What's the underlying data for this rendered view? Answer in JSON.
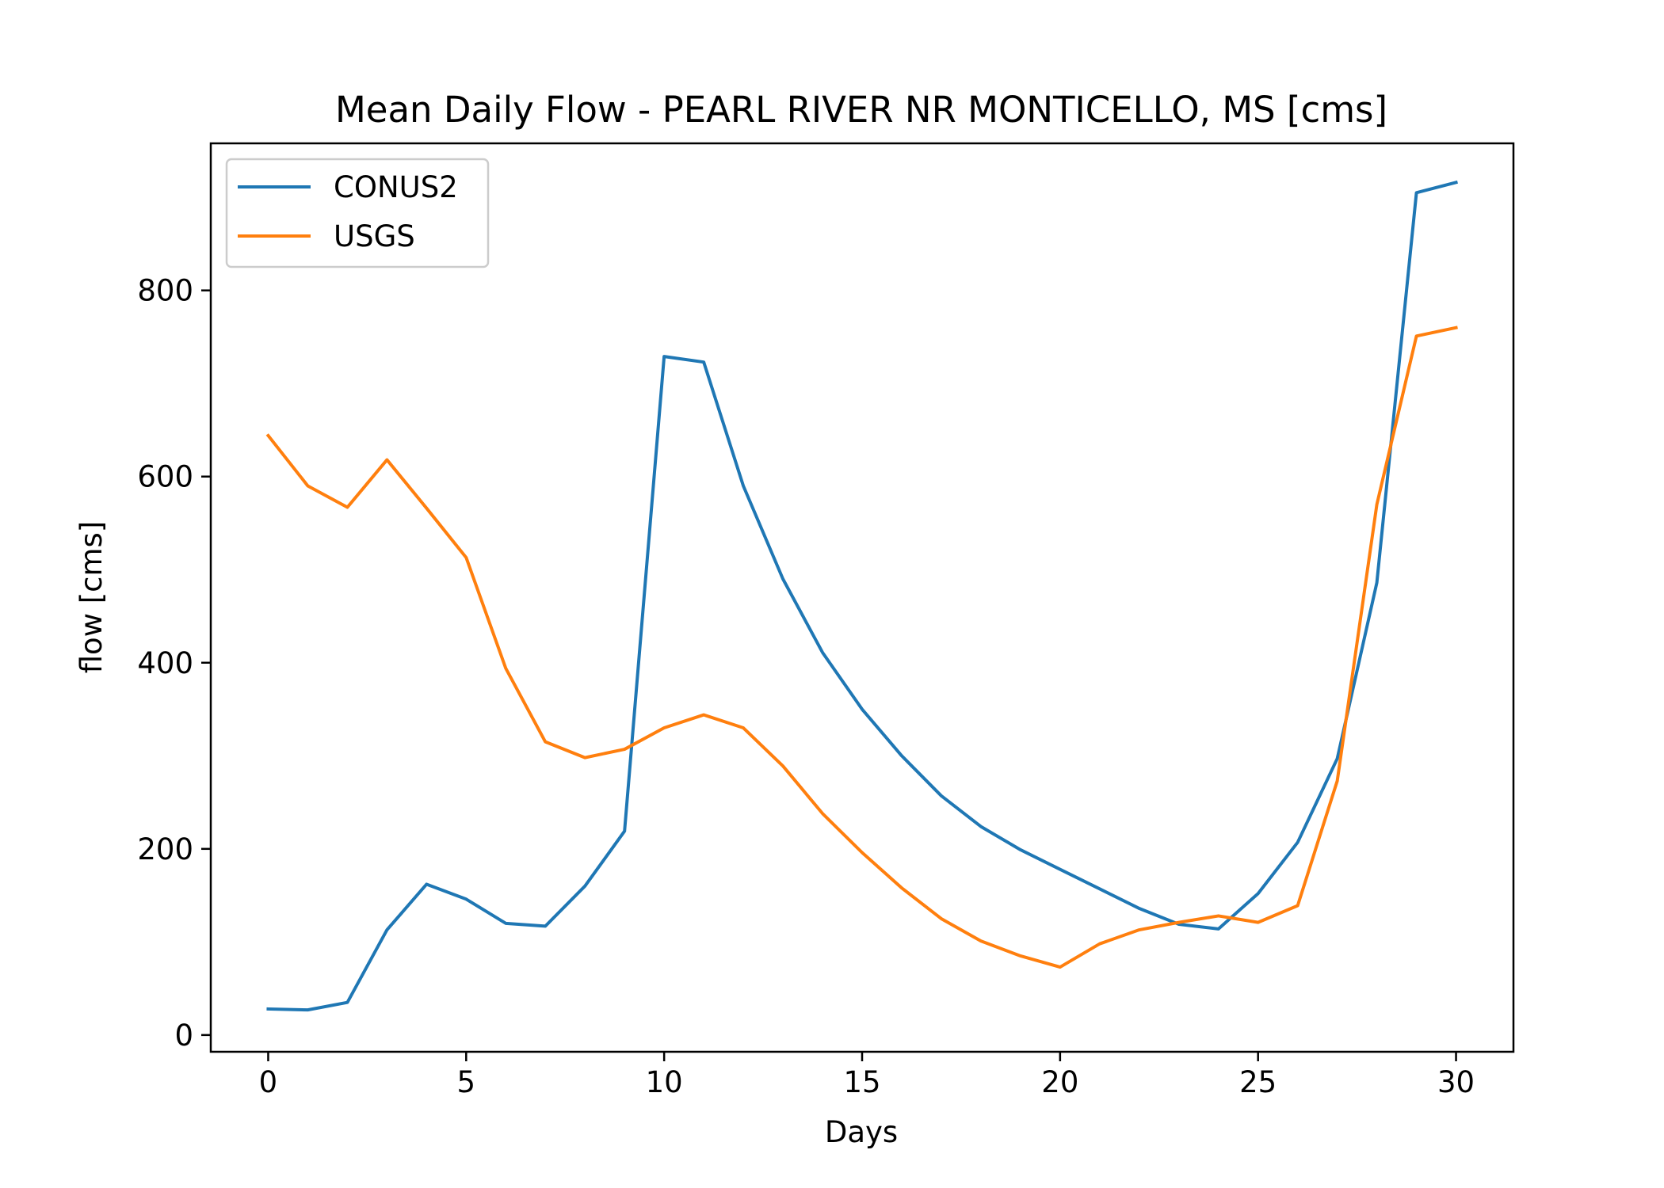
{
  "chart_data": {
    "type": "line",
    "title": "Mean Daily Flow - PEARL RIVER NR MONTICELLO, MS [cms]",
    "xlabel": "Days",
    "ylabel": "flow [cms]",
    "xlim": [
      -1.45,
      31.45
    ],
    "ylim": [
      -18,
      958
    ],
    "xticks": [
      0,
      5,
      10,
      15,
      20,
      25,
      30
    ],
    "yticks": [
      0,
      200,
      400,
      600,
      800
    ],
    "grid": false,
    "legend_position": "upper-left",
    "x": [
      0,
      1,
      2,
      3,
      4,
      5,
      6,
      7,
      8,
      9,
      10,
      11,
      12,
      13,
      14,
      15,
      16,
      17,
      18,
      19,
      20,
      21,
      22,
      23,
      24,
      25,
      26,
      27,
      28,
      29,
      30
    ],
    "series": [
      {
        "name": "CONUS2",
        "color": "#1f77b4",
        "values": [
          28,
          27,
          35,
          113,
          162,
          146,
          120,
          117,
          160,
          219,
          729,
          723,
          590,
          490,
          411,
          350,
          300,
          257,
          224,
          199,
          178,
          157,
          136,
          119,
          114,
          152,
          207,
          297,
          486,
          905,
          916
        ]
      },
      {
        "name": "USGS",
        "color": "#ff7f0e",
        "values": [
          644,
          590,
          567,
          618,
          566,
          513,
          394,
          315,
          298,
          307,
          330,
          344,
          330,
          289,
          238,
          196,
          158,
          125,
          101,
          85,
          73,
          98,
          113,
          121,
          128,
          121,
          139,
          273,
          570,
          751,
          760
        ]
      }
    ]
  }
}
